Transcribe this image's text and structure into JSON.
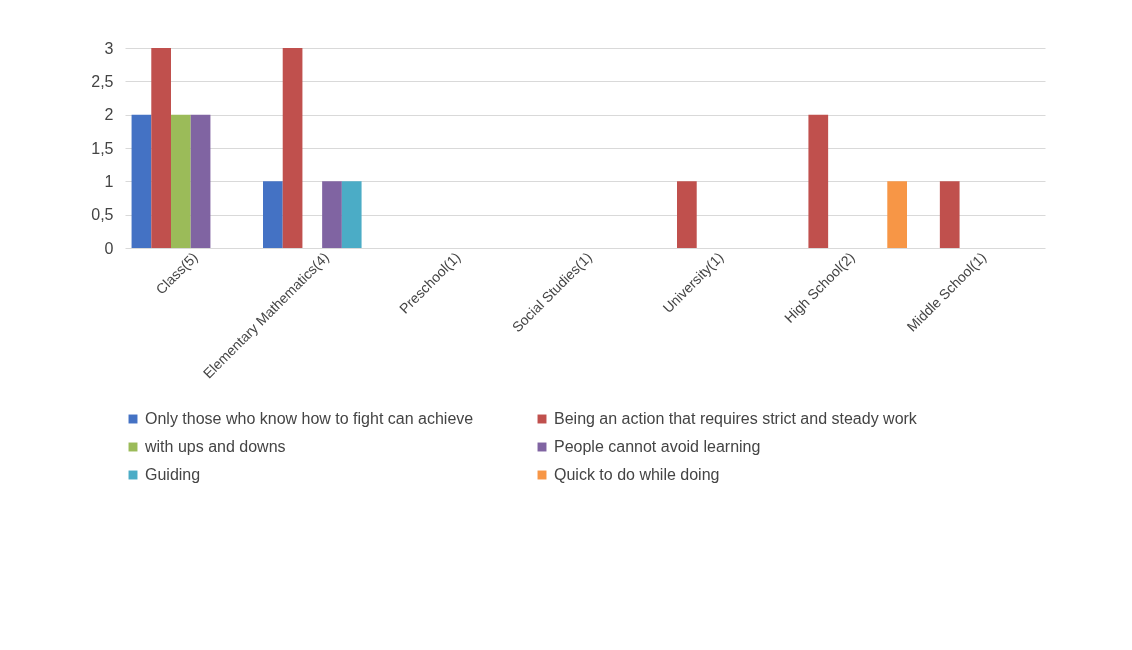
{
  "chart_data": {
    "type": "bar",
    "categories": [
      "Class(5)",
      "Elementary Mathematics(4)",
      "Preschool(1)",
      "Social Studies(1)",
      "University(1)",
      "High School(2)",
      "Middle School(1)"
    ],
    "series": [
      {
        "name": "Only those who know how to fight can achieve",
        "color": "#4472c4",
        "values": [
          2,
          1,
          0,
          0,
          0,
          0,
          0
        ]
      },
      {
        "name": "Being an action that requires strict and steady work",
        "color": "#c0504d",
        "values": [
          3,
          3,
          0,
          0,
          1,
          2,
          1
        ]
      },
      {
        "name": "with ups and downs",
        "color": "#9bbb59",
        "values": [
          2,
          0,
          0,
          0,
          0,
          0,
          0
        ]
      },
      {
        "name": "People cannot avoid learning",
        "color": "#8064a2",
        "values": [
          2,
          1,
          0,
          0,
          0,
          0,
          0
        ]
      },
      {
        "name": "Guiding",
        "color": "#4bacc6",
        "values": [
          0,
          1,
          0,
          0,
          0,
          0,
          0
        ]
      },
      {
        "name": "Quick to do while doing",
        "color": "#f79646",
        "values": [
          0,
          0,
          0,
          0,
          0,
          1,
          0
        ]
      }
    ],
    "ylim": [
      0,
      3
    ],
    "yticks": [
      0,
      {
        "value": 0.5,
        "label": "0,5"
      },
      1,
      {
        "value": 1.5,
        "label": "1,5"
      },
      2,
      {
        "value": 2.5,
        "label": "2,5"
      },
      3
    ],
    "grid": "y",
    "legend": "bottom"
  }
}
